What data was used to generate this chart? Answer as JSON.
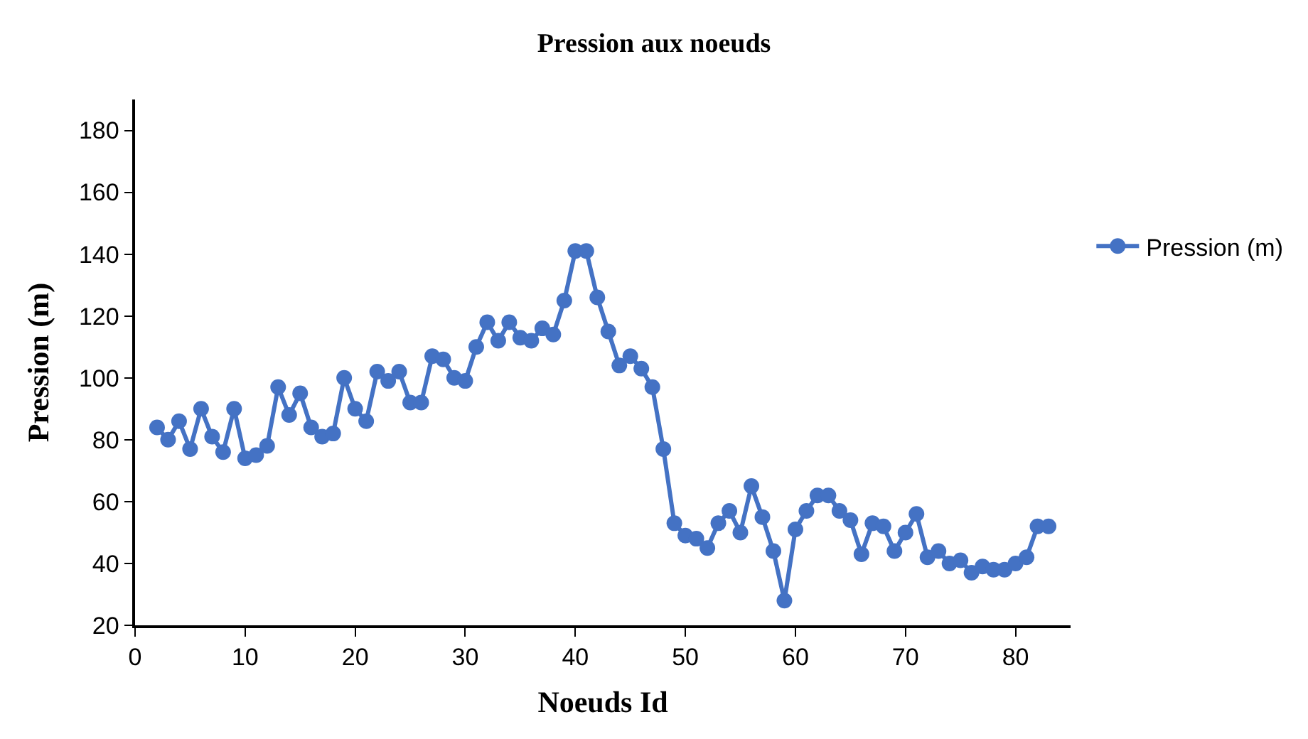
{
  "chart_data": {
    "type": "line",
    "title": "Pression aux noeuds",
    "xlabel": "Noeuds Id",
    "ylabel": "Pression (m)",
    "x": [
      2,
      3,
      4,
      5,
      6,
      7,
      8,
      9,
      10,
      11,
      12,
      13,
      14,
      15,
      16,
      17,
      18,
      19,
      20,
      21,
      22,
      23,
      24,
      25,
      26,
      27,
      28,
      29,
      30,
      31,
      32,
      33,
      34,
      35,
      36,
      37,
      38,
      39,
      40,
      41,
      42,
      43,
      44,
      45,
      46,
      47,
      48,
      49,
      50,
      51,
      52,
      53,
      54,
      55,
      56,
      57,
      58,
      59,
      60,
      61,
      62,
      63,
      64,
      65,
      66,
      67,
      68,
      69,
      70,
      71,
      72,
      73,
      74,
      75,
      76,
      77,
      78,
      79,
      80,
      81,
      82,
      83
    ],
    "series": [
      {
        "name": "Pression (m)",
        "color": "#4472c4",
        "values": [
          84,
          80,
          86,
          77,
          90,
          81,
          76,
          90,
          74,
          75,
          78,
          97,
          88,
          95,
          84,
          81,
          82,
          100,
          90,
          86,
          102,
          99,
          102,
          92,
          92,
          107,
          106,
          100,
          99,
          110,
          118,
          112,
          118,
          113,
          112,
          116,
          114,
          125,
          141,
          141,
          126,
          115,
          104,
          107,
          103,
          97,
          77,
          53,
          49,
          48,
          45,
          53,
          57,
          50,
          65,
          55,
          44,
          28,
          51,
          57,
          62,
          62,
          57,
          54,
          43,
          53,
          52,
          44,
          50,
          56,
          42,
          44,
          40,
          41,
          37,
          39,
          38,
          38,
          40,
          42,
          52,
          52
        ]
      }
    ],
    "xlim": [
      0,
      85
    ],
    "xticks": [
      0,
      10,
      20,
      30,
      40,
      50,
      60,
      70,
      80
    ],
    "ylim": [
      20,
      190
    ],
    "yticks": [
      20,
      40,
      60,
      80,
      100,
      120,
      140,
      160,
      180
    ],
    "grid": false,
    "legend": "right",
    "marker": "circle",
    "line_style": "solid"
  }
}
